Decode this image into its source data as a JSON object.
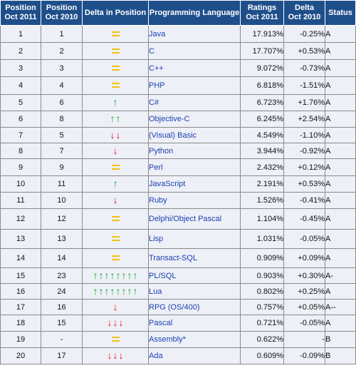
{
  "headers": [
    "Position Oct 2011",
    "Position Oct 2010",
    "Delta in Position",
    "Programming Language",
    "Ratings Oct 2011",
    "Delta Oct 2010",
    "Status"
  ],
  "header_lines": [
    [
      "Position",
      "Oct 2011"
    ],
    [
      "Position",
      "Oct 2010"
    ],
    [
      "Delta in Position"
    ],
    [
      "Programming Language"
    ],
    [
      "Ratings",
      "Oct 2011"
    ],
    [
      "Delta",
      "Oct 2010"
    ],
    [
      "Status"
    ]
  ],
  "rows": [
    {
      "pos2011": "1",
      "pos2010": "1",
      "delta": {
        "dir": "same",
        "count": 1
      },
      "language": "Java",
      "rating": "17.913%",
      "delta_rating": "-0.25%",
      "status": "A"
    },
    {
      "pos2011": "2",
      "pos2010": "2",
      "delta": {
        "dir": "same",
        "count": 1
      },
      "language": "C",
      "rating": "17.707%",
      "delta_rating": "+0.53%",
      "status": "A"
    },
    {
      "pos2011": "3",
      "pos2010": "3",
      "delta": {
        "dir": "same",
        "count": 1
      },
      "language": "C++",
      "rating": "9.072%",
      "delta_rating": "-0.73%",
      "status": "A"
    },
    {
      "pos2011": "4",
      "pos2010": "4",
      "delta": {
        "dir": "same",
        "count": 1
      },
      "language": "PHP",
      "rating": "6.818%",
      "delta_rating": "-1.51%",
      "status": "A"
    },
    {
      "pos2011": "5",
      "pos2010": "6",
      "delta": {
        "dir": "up",
        "count": 1
      },
      "language": "C#",
      "rating": "6.723%",
      "delta_rating": "+1.76%",
      "status": "A"
    },
    {
      "pos2011": "6",
      "pos2010": "8",
      "delta": {
        "dir": "up",
        "count": 2
      },
      "language": "Objective-C",
      "rating": "6.245%",
      "delta_rating": "+2.54%",
      "status": "A"
    },
    {
      "pos2011": "7",
      "pos2010": "5",
      "delta": {
        "dir": "down",
        "count": 2
      },
      "language": "(Visual) Basic",
      "rating": "4.549%",
      "delta_rating": "-1.10%",
      "status": "A"
    },
    {
      "pos2011": "8",
      "pos2010": "7",
      "delta": {
        "dir": "down",
        "count": 1
      },
      "language": "Python",
      "rating": "3.944%",
      "delta_rating": "-0.92%",
      "status": "A"
    },
    {
      "pos2011": "9",
      "pos2010": "9",
      "delta": {
        "dir": "same",
        "count": 1
      },
      "language": "Perl",
      "rating": "2.432%",
      "delta_rating": "+0.12%",
      "status": "A"
    },
    {
      "pos2011": "10",
      "pos2010": "11",
      "delta": {
        "dir": "up",
        "count": 1
      },
      "language": "JavaScript",
      "rating": "2.191%",
      "delta_rating": "+0.53%",
      "status": "A"
    },
    {
      "pos2011": "11",
      "pos2010": "10",
      "delta": {
        "dir": "down",
        "count": 1
      },
      "language": "Ruby",
      "rating": "1.526%",
      "delta_rating": "-0.41%",
      "status": "A"
    },
    {
      "pos2011": "12",
      "pos2010": "12",
      "delta": {
        "dir": "same",
        "count": 1
      },
      "language": "Delphi/Object Pascal",
      "rating": "1.104%",
      "delta_rating": "-0.45%",
      "status": "A"
    },
    {
      "pos2011": "13",
      "pos2010": "13",
      "delta": {
        "dir": "same",
        "count": 1
      },
      "language": "Lisp",
      "rating": "1.031%",
      "delta_rating": "-0.05%",
      "status": "A"
    },
    {
      "pos2011": "14",
      "pos2010": "14",
      "delta": {
        "dir": "same",
        "count": 1
      },
      "language": "Transact-SQL",
      "rating": "0.909%",
      "delta_rating": "+0.09%",
      "status": "A"
    },
    {
      "pos2011": "15",
      "pos2010": "23",
      "delta": {
        "dir": "up",
        "count": 8
      },
      "language": "PL/SQL",
      "rating": "0.903%",
      "delta_rating": "+0.30%",
      "status": "A-"
    },
    {
      "pos2011": "16",
      "pos2010": "24",
      "delta": {
        "dir": "up",
        "count": 8
      },
      "language": "Lua",
      "rating": "0.802%",
      "delta_rating": "+0.25%",
      "status": "A"
    },
    {
      "pos2011": "17",
      "pos2010": "16",
      "delta": {
        "dir": "down",
        "count": 1
      },
      "language": "RPG (OS/400)",
      "rating": "0.757%",
      "delta_rating": "+0.05%",
      "status": "A--"
    },
    {
      "pos2011": "18",
      "pos2010": "15",
      "delta": {
        "dir": "down",
        "count": 3
      },
      "language": "Pascal",
      "rating": "0.721%",
      "delta_rating": "-0.05%",
      "status": "A"
    },
    {
      "pos2011": "19",
      "pos2010": "-",
      "delta": {
        "dir": "same",
        "count": 1
      },
      "language": "Assembly*",
      "rating": "0.622%",
      "delta_rating": "-",
      "status": "B"
    },
    {
      "pos2011": "20",
      "pos2010": "17",
      "delta": {
        "dir": "down",
        "count": 3
      },
      "language": "Ada",
      "rating": "0.609%",
      "delta_rating": "-0.09%",
      "status": "B"
    }
  ],
  "colors": {
    "header_bg": "#1f4f8b",
    "row_bg": "#eef0f7",
    "language_text": "#1a3fb0",
    "arrow_up": "#15a32a",
    "arrow_down": "#e0161c",
    "equal_sign": "#f5c20a"
  }
}
